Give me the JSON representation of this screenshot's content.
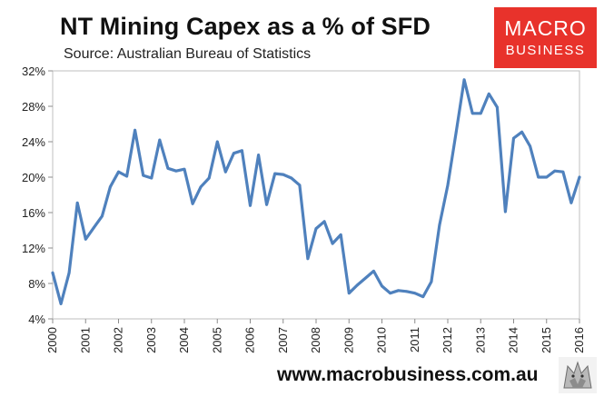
{
  "title": "NT Mining Capex as a % of SFD",
  "subtitle": "Source: Australian Bureau of Statistics",
  "logo": {
    "line1": "MACRO",
    "line2": "BUSINESS",
    "color": "#e8322b"
  },
  "footer": {
    "website": "www.macrobusiness.com.au"
  },
  "chart_data": {
    "type": "line",
    "title": "NT Mining Capex as a % of SFD",
    "xlabel": "",
    "ylabel": "",
    "ylim": [
      4,
      32
    ],
    "xlim": [
      2000,
      2016
    ],
    "yticks": [
      "4%",
      "8%",
      "12%",
      "16%",
      "20%",
      "24%",
      "28%",
      "32%"
    ],
    "xticks": [
      "2000",
      "2001",
      "2002",
      "2003",
      "2004",
      "2005",
      "2006",
      "2007",
      "2008",
      "2009",
      "2010",
      "2011",
      "2012",
      "2013",
      "2014",
      "2015",
      "2016"
    ],
    "grid": false,
    "line_color": "#4f81bd",
    "series": [
      {
        "x": [
          2000.0,
          2000.25,
          2000.5,
          2000.75,
          2001.0,
          2001.25,
          2001.5,
          2001.75,
          2002.0,
          2002.25,
          2002.5,
          2002.75,
          2003.0,
          2003.25,
          2003.5,
          2003.75,
          2004.0,
          2004.25,
          2004.5,
          2004.75,
          2005.0,
          2005.25,
          2005.5,
          2005.75,
          2006.0,
          2006.25,
          2006.5,
          2006.75,
          2007.0,
          2007.25,
          2007.5,
          2007.75,
          2008.0,
          2008.25,
          2008.5,
          2008.75,
          2009.0,
          2009.25,
          2009.5,
          2009.75,
          2010.0,
          2010.25,
          2010.5,
          2010.75,
          2011.0,
          2011.25,
          2011.5,
          2011.75,
          2012.0,
          2012.25,
          2012.5,
          2012.75,
          2013.0,
          2013.25,
          2013.5,
          2013.75,
          2014.0,
          2014.25,
          2014.5,
          2014.75,
          2015.0,
          2015.25,
          2015.5,
          2015.75,
          2016.0
        ],
        "y": [
          9.2,
          5.7,
          9.2,
          17.1,
          13.0,
          14.3,
          15.6,
          18.9,
          20.6,
          20.1,
          25.3,
          20.2,
          19.9,
          24.2,
          21.0,
          20.7,
          20.9,
          17.0,
          18.9,
          19.9,
          24.0,
          20.6,
          22.7,
          23.0,
          16.8,
          22.5,
          16.9,
          20.4,
          20.3,
          19.9,
          19.1,
          10.8,
          14.2,
          15.0,
          12.5,
          13.5,
          6.9,
          7.8,
          8.6,
          9.4,
          7.7,
          6.9,
          7.2,
          7.1,
          6.9,
          6.5,
          8.2,
          14.6,
          19.1,
          25.0,
          31.0,
          27.2,
          27.2,
          29.4,
          27.9,
          16.1,
          24.4,
          25.1,
          23.5,
          20.0,
          20.0,
          20.7,
          20.6,
          17.1,
          20.0
        ]
      }
    ]
  }
}
